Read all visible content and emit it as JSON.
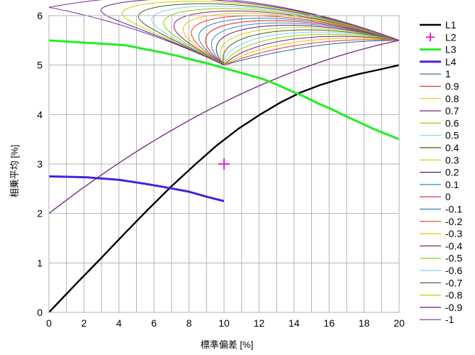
{
  "chart_data": {
    "type": "line",
    "xlabel": "標準偏差 [%]",
    "ylabel": "相乗平均 [%]",
    "xlim": [
      0,
      20
    ],
    "ylim": [
      0,
      6
    ],
    "x_ticks": [
      0,
      2,
      4,
      6,
      8,
      10,
      12,
      14,
      16,
      18,
      20
    ],
    "y_ticks": [
      0,
      1,
      2,
      3,
      4,
      5,
      6
    ],
    "grid": true,
    "legend_position": "right",
    "parameter_values": [
      1,
      0.9,
      0.8,
      0.7,
      0.6,
      0.5,
      0.4,
      0.3,
      0.2,
      0.1,
      0,
      -0.1,
      -0.2,
      -0.3,
      -0.4,
      -0.5,
      -0.6,
      -0.7,
      -0.8,
      -0.9,
      -1
    ],
    "parameter_labels": [
      "1",
      "0.9",
      "0.8",
      "0.7",
      "0.6",
      "0.5",
      "0.4",
      "0.3",
      "0.2",
      "0.1",
      "0",
      "-0.1",
      "-0.2",
      "-0.3",
      "-0.4",
      "-0.5",
      "-0.6",
      "-0.7",
      "-0.8",
      "-0.9",
      "-1"
    ],
    "parameter_colors": [
      "#1f5fa8",
      "#e8362c",
      "#f2c200",
      "#7a1f6e",
      "#8fd400",
      "#86d0f0",
      "#4b5a18",
      "#c8d400",
      "#5a1a7e",
      "#2d8cc8",
      "#d8201a",
      "#2a7fc0",
      "#e83c28",
      "#f0c000",
      "#8a1e78",
      "#80cc00",
      "#84d0f4",
      "#4a5a18",
      "#c4d000",
      "#5c1a80",
      "#7a2aa0"
    ],
    "named_series": [
      {
        "name": "L1",
        "color": "#000000",
        "style": "line",
        "points": [
          [
            0,
            0
          ],
          [
            1.45,
            0.54
          ],
          [
            2.88,
            1.06
          ],
          [
            4.28,
            1.58
          ],
          [
            5.66,
            2.08
          ],
          [
            7.0,
            2.55
          ],
          [
            8.32,
            2.98
          ],
          [
            9.6,
            3.38
          ],
          [
            10.85,
            3.72
          ],
          [
            12.06,
            4.0
          ],
          [
            13.25,
            4.25
          ],
          [
            14.4,
            4.45
          ],
          [
            15.52,
            4.6
          ],
          [
            16.62,
            4.72
          ],
          [
            17.7,
            4.82
          ],
          [
            18.76,
            4.9
          ],
          [
            20.0,
            5.0
          ]
        ]
      },
      {
        "name": "L2",
        "color": "#e020d0",
        "style": "marker",
        "points": [
          [
            10.0,
            3.0
          ]
        ]
      },
      {
        "name": "L3",
        "color": "#22ee22",
        "style": "line",
        "points": [
          [
            0,
            5.5
          ],
          [
            2.2,
            5.45
          ],
          [
            4.4,
            5.4
          ],
          [
            5.5,
            5.32
          ],
          [
            6.4,
            5.26
          ],
          [
            7.3,
            5.19
          ],
          [
            8.15,
            5.11
          ],
          [
            9.0,
            5.04
          ],
          [
            9.8,
            4.96
          ],
          [
            10.6,
            4.88
          ],
          [
            11.4,
            4.8
          ],
          [
            12.2,
            4.72
          ],
          [
            13.0,
            4.61
          ],
          [
            13.8,
            4.48
          ],
          [
            14.6,
            4.36
          ],
          [
            15.4,
            4.22
          ],
          [
            16.2,
            4.1
          ],
          [
            17.0,
            3.96
          ],
          [
            17.8,
            3.83
          ],
          [
            18.6,
            3.7
          ],
          [
            19.3,
            3.6
          ],
          [
            20.0,
            3.5
          ]
        ]
      },
      {
        "name": "L4",
        "color": "#4422dd",
        "style": "line",
        "points": [
          [
            0,
            2.75
          ],
          [
            2.2,
            2.73
          ],
          [
            4.0,
            2.68
          ],
          [
            5.5,
            2.6
          ],
          [
            6.8,
            2.52
          ],
          [
            8.0,
            2.44
          ],
          [
            9.1,
            2.33
          ],
          [
            10.0,
            2.25
          ]
        ]
      }
    ],
    "legend": [
      "L1",
      "L2",
      "L3",
      "L4",
      "1",
      "0.9",
      "0.8",
      "0.7",
      "0.6",
      "0.5",
      "0.4",
      "0.3",
      "0.2",
      "0.1",
      "0",
      "-0.1",
      "-0.2",
      "-0.3",
      "-0.4",
      "-0.5",
      "-0.6",
      "-0.7",
      "-0.8",
      "-0.9",
      "-1"
    ]
  }
}
